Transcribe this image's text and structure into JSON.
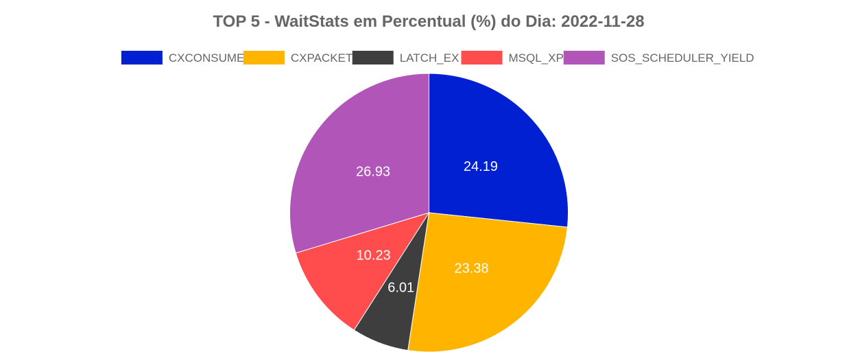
{
  "chart_data": {
    "type": "pie",
    "title": "TOP 5 - WaitStats em Percentual (%) do Dia: 2022-11-28",
    "legend_position": "top",
    "categories": [
      "CXCONSUMER",
      "CXPACKET",
      "LATCH_EX",
      "MSQL_XP",
      "SOS_SCHEDULER_YIELD"
    ],
    "values": [
      24.19,
      23.38,
      6.01,
      10.23,
      26.93
    ],
    "value_labels": [
      "24.19",
      "23.38",
      "6.01",
      "10.23",
      "26.93"
    ],
    "colors": [
      "#0020D2",
      "#FFB400",
      "#3E3E3E",
      "#FF4D4D",
      "#B155B9"
    ]
  }
}
